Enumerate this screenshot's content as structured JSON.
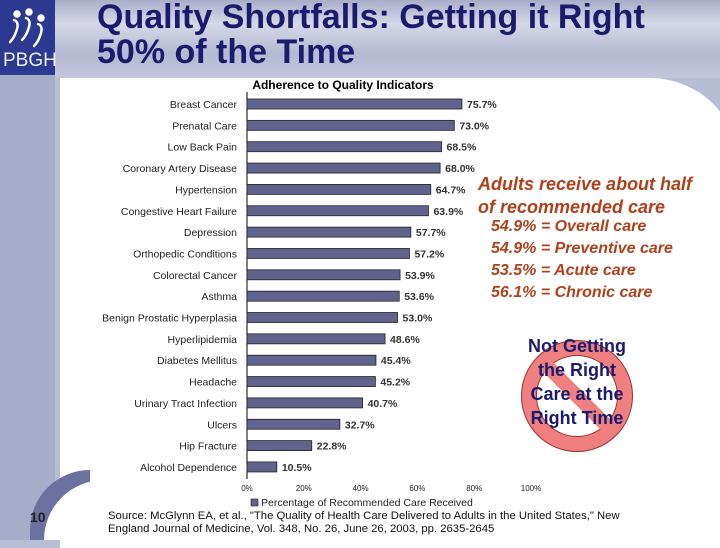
{
  "header": {
    "title_line1": "Quality Shortfalls: Getting it Right",
    "title_line2": "50% of the Time",
    "logo_text": "PBGH"
  },
  "chart_data": {
    "type": "bar",
    "orientation": "horizontal",
    "title": "Adherence to Quality Indicators",
    "categories": [
      "Breast Cancer",
      "Prenatal Care",
      "Low Back Pain",
      "Coronary Artery Disease",
      "Hypertension",
      "Congestive Heart Failure",
      "Depression",
      "Orthopedic Conditions",
      "Colorectal Cancer",
      "Asthma",
      "Benign Prostatic Hyperplasia",
      "Hyperlipidemia",
      "Diabetes Mellitus",
      "Headache",
      "Urinary Tract Infection",
      "Ulcers",
      "Hip Fracture",
      "Alcohol Dependence"
    ],
    "series": [
      {
        "name": "Percentage of Recommended Care Received",
        "values": [
          75.7,
          73.0,
          68.5,
          68.0,
          64.7,
          63.9,
          57.7,
          57.2,
          53.9,
          53.6,
          53.0,
          48.6,
          45.4,
          45.2,
          40.7,
          32.7,
          22.8,
          10.5
        ]
      }
    ],
    "data_labels": [
      "75.7%",
      "73.0%",
      "68.5%",
      "68.0%",
      "64.7%",
      "63.9%",
      "57.7%",
      "57.2%",
      "53.9%",
      "53.6%",
      "53.0%",
      "48.6%",
      "45.4%",
      "45.2%",
      "40.7%",
      "32.7%",
      "22.8%",
      "10.5%"
    ],
    "xticks": [
      "0%",
      "20%",
      "40%",
      "60%",
      "80%",
      "100%"
    ],
    "xlim": [
      0,
      100
    ],
    "grid": false,
    "legend": "bottom",
    "bar_color": "#62628f"
  },
  "notes": {
    "headline_line1": "Adults receive about half",
    "headline_line2": "of recommended care",
    "items": [
      "54.9% = Overall care",
      "54.9% = Preventive care",
      "53.5% = Acute care",
      "56.1% = Chronic care"
    ],
    "color": "#b0401a"
  },
  "no_sign": {
    "lines": [
      "Not Getting",
      "the Right",
      "Care at the",
      "Right Time"
    ],
    "ring_color": "#f08080"
  },
  "footer": {
    "page_number": "10",
    "source_line1": "Source:  McGlynn EA, et al., \"The Quality of Health Care Delivered to Adults in the United States,\" New",
    "source_line2": "England Journal of Medicine, Vol. 348, No. 26, June 26, 2003, pp. 2635-2645"
  }
}
